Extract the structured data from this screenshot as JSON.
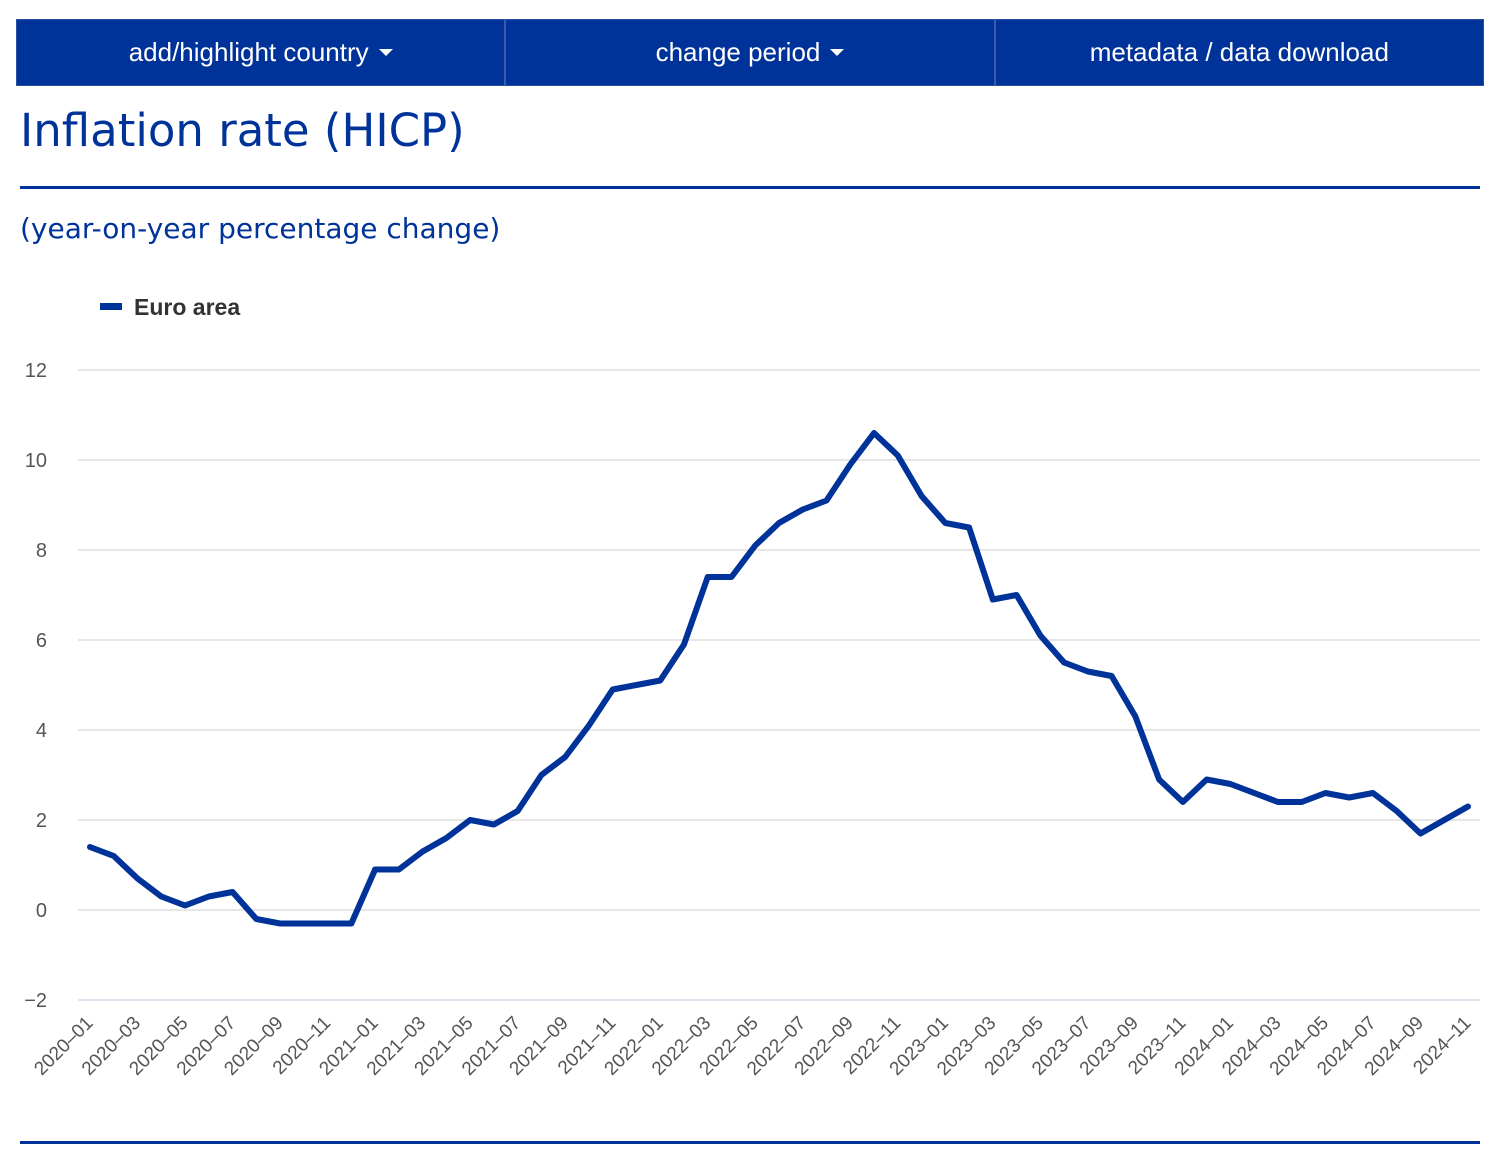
{
  "nav": {
    "add_country": "add/highlight country",
    "change_period": "change period",
    "metadata": "metadata / data download"
  },
  "title": "Inflation rate (HICP)",
  "subtitle": "(year-on-year percentage change)",
  "colors": {
    "brand": "#003399",
    "grid": "#ccd6eb"
  },
  "chart_data": {
    "type": "line",
    "title": "Inflation rate (HICP)",
    "subtitle": "(year-on-year percentage change)",
    "legend_position": "top-left",
    "grid": true,
    "ylim": [
      -2,
      12
    ],
    "yticks": [
      -2,
      0,
      2,
      4,
      6,
      8,
      10,
      12
    ],
    "x": [
      "2020-01",
      "2020-02",
      "2020-03",
      "2020-04",
      "2020-05",
      "2020-06",
      "2020-07",
      "2020-08",
      "2020-09",
      "2020-10",
      "2020-11",
      "2020-12",
      "2021-01",
      "2021-02",
      "2021-03",
      "2021-04",
      "2021-05",
      "2021-06",
      "2021-07",
      "2021-08",
      "2021-09",
      "2021-10",
      "2021-11",
      "2021-12",
      "2022-01",
      "2022-02",
      "2022-03",
      "2022-04",
      "2022-05",
      "2022-06",
      "2022-07",
      "2022-08",
      "2022-09",
      "2022-10",
      "2022-11",
      "2022-12",
      "2023-01",
      "2023-02",
      "2023-03",
      "2023-04",
      "2023-05",
      "2023-06",
      "2023-07",
      "2023-08",
      "2023-09",
      "2023-10",
      "2023-11",
      "2023-12",
      "2024-01",
      "2024-02",
      "2024-03",
      "2024-04",
      "2024-05",
      "2024-06",
      "2024-07",
      "2024-08",
      "2024-09",
      "2024-10",
      "2024-11"
    ],
    "xticks": [
      "2020-01",
      "2020-03",
      "2020-05",
      "2020-07",
      "2020-09",
      "2020-11",
      "2021-01",
      "2021-03",
      "2021-05",
      "2021-07",
      "2021-09",
      "2021-11",
      "2022-01",
      "2022-03",
      "2022-05",
      "2022-07",
      "2022-09",
      "2022-11",
      "2023-01",
      "2023-03",
      "2023-05",
      "2023-07",
      "2023-09",
      "2023-11",
      "2024-01",
      "2024-03",
      "2024-05",
      "2024-07",
      "2024-09",
      "2024-11"
    ],
    "series": [
      {
        "name": "Euro area",
        "color": "#003399",
        "values": [
          1.4,
          1.2,
          0.7,
          0.3,
          0.1,
          0.3,
          0.4,
          -0.2,
          -0.3,
          -0.3,
          -0.3,
          -0.3,
          0.9,
          0.9,
          1.3,
          1.6,
          2.0,
          1.9,
          2.2,
          3.0,
          3.4,
          4.1,
          4.9,
          5.0,
          5.1,
          5.9,
          7.4,
          7.4,
          8.1,
          8.6,
          8.9,
          9.1,
          9.9,
          10.6,
          10.1,
          9.2,
          8.6,
          8.5,
          6.9,
          7.0,
          6.1,
          5.5,
          5.3,
          5.2,
          4.3,
          2.9,
          2.4,
          2.9,
          2.8,
          2.6,
          2.4,
          2.4,
          2.6,
          2.5,
          2.6,
          2.2,
          1.7,
          2.0,
          2.3
        ]
      }
    ]
  }
}
